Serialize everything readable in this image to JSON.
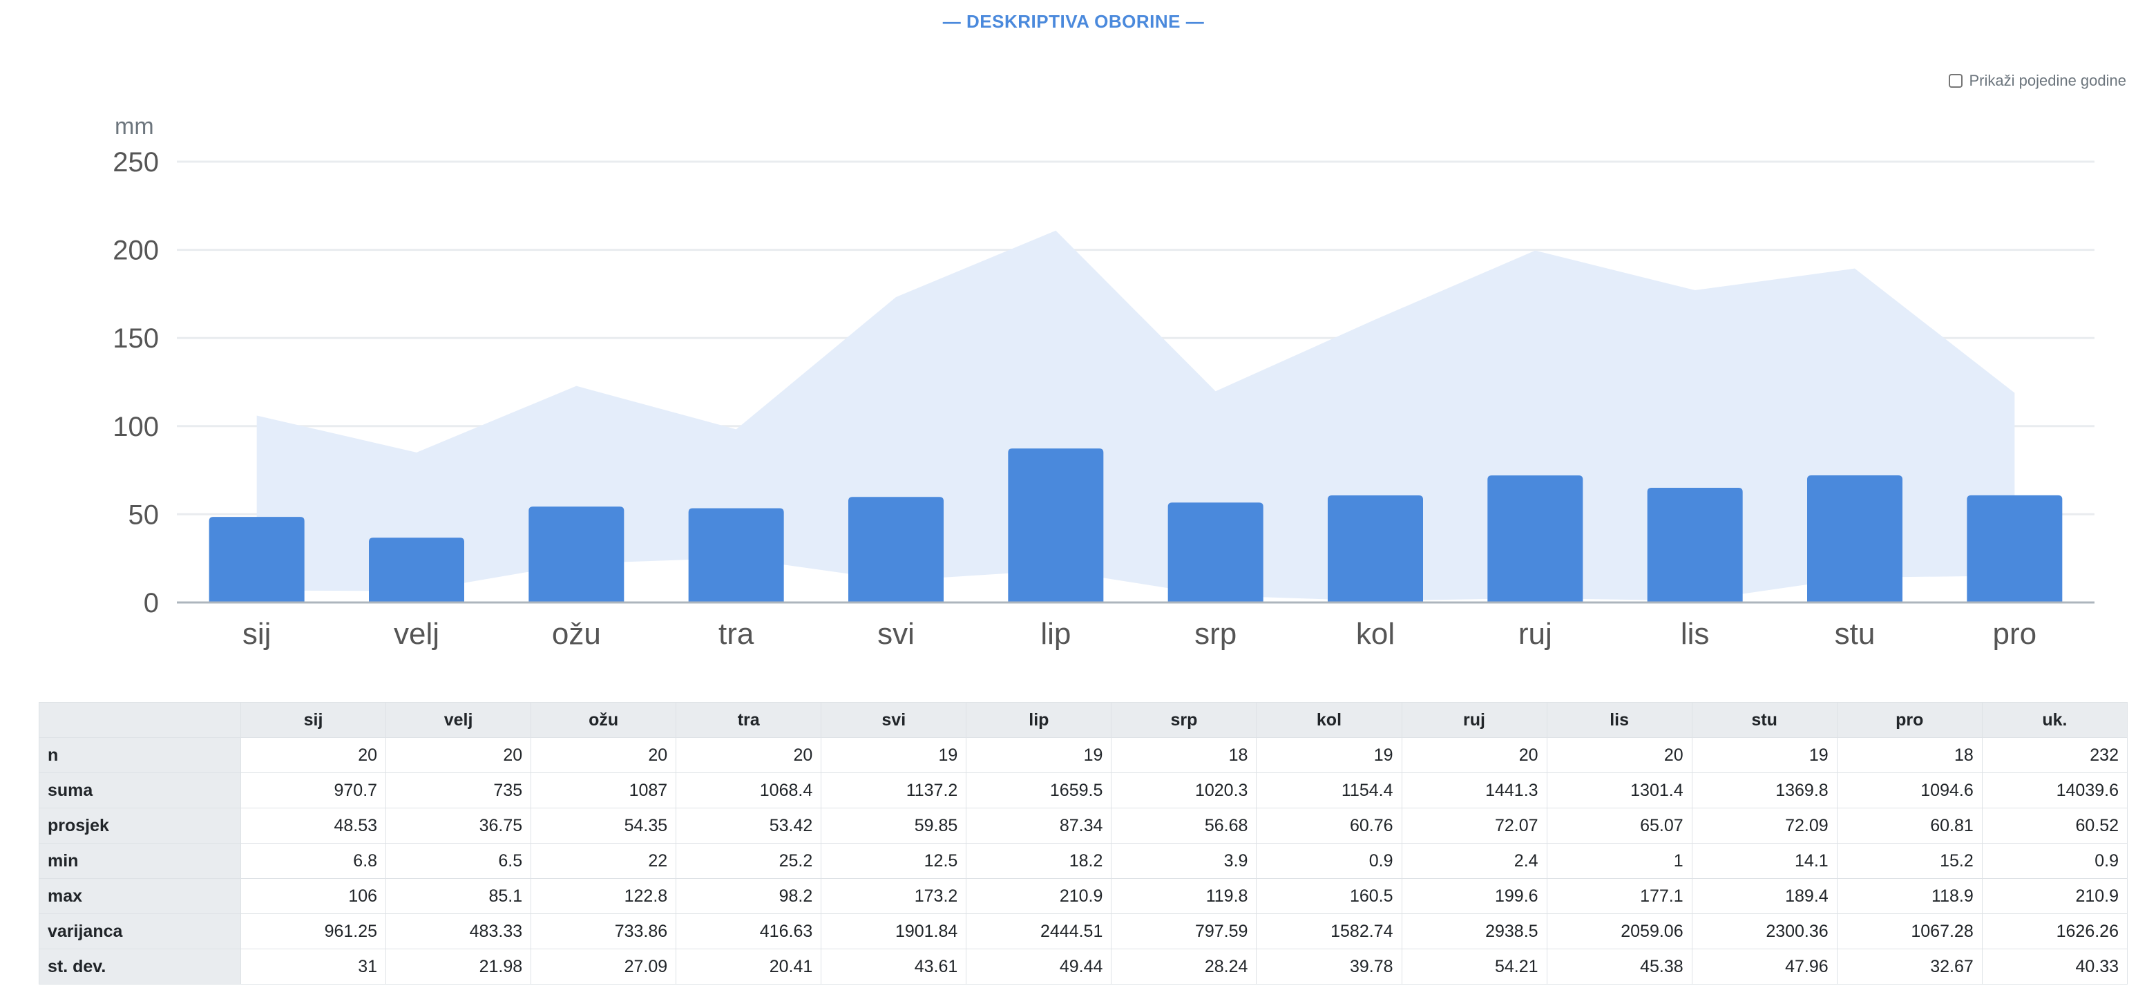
{
  "title": "— DESKRIPTIVA OBORINE —",
  "toggle": {
    "label": "Prikaži pojedine godine",
    "checked": false
  },
  "colors": {
    "bar": "#4a89dc",
    "range": "#e4edfa",
    "title": "#4a89dc"
  },
  "chart_data": {
    "type": "bar",
    "ylabel": "mm",
    "ylim": [
      0,
      250
    ],
    "yticks": [
      0,
      50,
      100,
      150,
      200,
      250
    ],
    "grid": true,
    "categories": [
      "sij",
      "velj",
      "ožu",
      "tra",
      "svi",
      "lip",
      "srp",
      "kol",
      "ruj",
      "lis",
      "stu",
      "pro"
    ],
    "series": [
      {
        "type": "bar",
        "values": [
          48.53,
          36.75,
          54.35,
          53.42,
          59.85,
          87.34,
          56.68,
          60.76,
          72.07,
          65.07,
          72.09,
          60.81
        ]
      },
      {
        "type": "area-range",
        "low": [
          6.8,
          6.5,
          22,
          25.2,
          12.5,
          18.2,
          3.9,
          0.9,
          2.4,
          1,
          14.1,
          15.2
        ],
        "high": [
          106,
          85.1,
          122.8,
          98.2,
          173.2,
          210.9,
          119.8,
          160.5,
          199.6,
          177.1,
          189.4,
          118.9
        ]
      }
    ]
  },
  "table": {
    "columns": [
      "sij",
      "velj",
      "ožu",
      "tra",
      "svi",
      "lip",
      "srp",
      "kol",
      "ruj",
      "lis",
      "stu",
      "pro",
      "uk."
    ],
    "rows": [
      {
        "label": "n",
        "values": [
          "20",
          "20",
          "20",
          "20",
          "19",
          "19",
          "18",
          "19",
          "20",
          "20",
          "19",
          "18",
          "232"
        ]
      },
      {
        "label": "suma",
        "values": [
          "970.7",
          "735",
          "1087",
          "1068.4",
          "1137.2",
          "1659.5",
          "1020.3",
          "1154.4",
          "1441.3",
          "1301.4",
          "1369.8",
          "1094.6",
          "14039.6"
        ]
      },
      {
        "label": "prosjek",
        "values": [
          "48.53",
          "36.75",
          "54.35",
          "53.42",
          "59.85",
          "87.34",
          "56.68",
          "60.76",
          "72.07",
          "65.07",
          "72.09",
          "60.81",
          "60.52"
        ]
      },
      {
        "label": "min",
        "values": [
          "6.8",
          "6.5",
          "22",
          "25.2",
          "12.5",
          "18.2",
          "3.9",
          "0.9",
          "2.4",
          "1",
          "14.1",
          "15.2",
          "0.9"
        ]
      },
      {
        "label": "max",
        "values": [
          "106",
          "85.1",
          "122.8",
          "98.2",
          "173.2",
          "210.9",
          "119.8",
          "160.5",
          "199.6",
          "177.1",
          "189.4",
          "118.9",
          "210.9"
        ]
      },
      {
        "label": "varijanca",
        "values": [
          "961.25",
          "483.33",
          "733.86",
          "416.63",
          "1901.84",
          "2444.51",
          "797.59",
          "1582.74",
          "2938.5",
          "2059.06",
          "2300.36",
          "1067.28",
          "1626.26"
        ]
      },
      {
        "label": "st. dev.",
        "values": [
          "31",
          "21.98",
          "27.09",
          "20.41",
          "43.61",
          "49.44",
          "28.24",
          "39.78",
          "54.21",
          "45.38",
          "47.96",
          "32.67",
          "40.33"
        ]
      }
    ]
  }
}
